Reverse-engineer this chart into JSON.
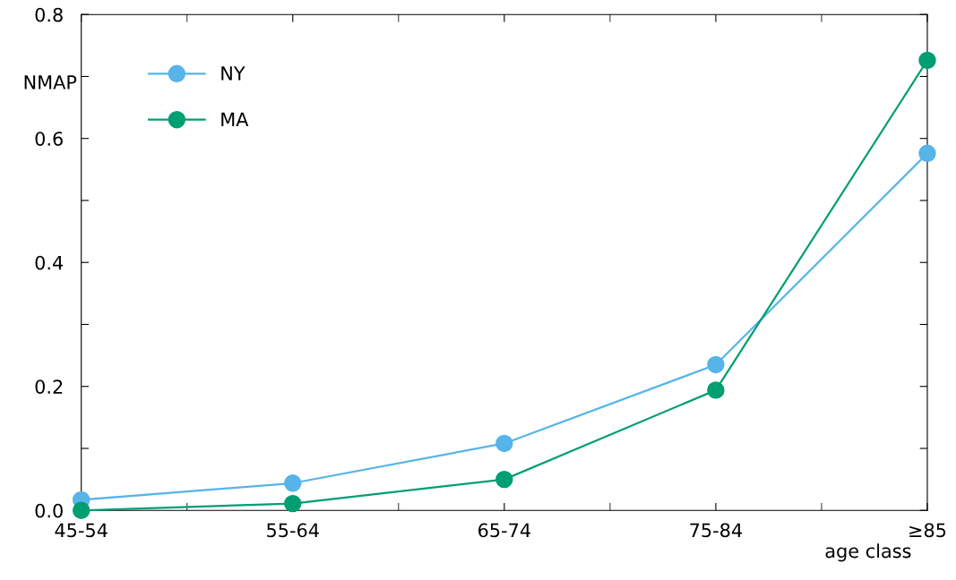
{
  "chart_data": {
    "type": "line",
    "ylabel": "NMAP",
    "xlabel": "age class",
    "categories": [
      "45-54",
      "55-64",
      "65-74",
      "75-84",
      "≥85"
    ],
    "series": [
      {
        "name": "NY",
        "color": "#56b4e9",
        "values": [
          0.017,
          0.044,
          0.108,
          0.235,
          0.576
        ]
      },
      {
        "name": "MA",
        "color": "#009e73",
        "values": [
          0.0,
          0.011,
          0.05,
          0.194,
          0.726
        ]
      }
    ],
    "ylim": [
      0,
      0.8
    ],
    "yticks": [
      {
        "value": 0.0,
        "label": "0.0"
      },
      {
        "value": 0.1,
        "label": null
      },
      {
        "value": 0.2,
        "label": "0.2"
      },
      {
        "value": 0.3,
        "label": null
      },
      {
        "value": 0.4,
        "label": "0.4"
      },
      {
        "value": 0.5,
        "label": null
      },
      {
        "value": 0.6,
        "label": "0.6"
      },
      {
        "value": 0.7,
        "label": null
      },
      {
        "value": 0.8,
        "label": "0.8"
      }
    ],
    "marker": "circle",
    "line_style": "solid",
    "grid": false,
    "legend": "top left"
  }
}
